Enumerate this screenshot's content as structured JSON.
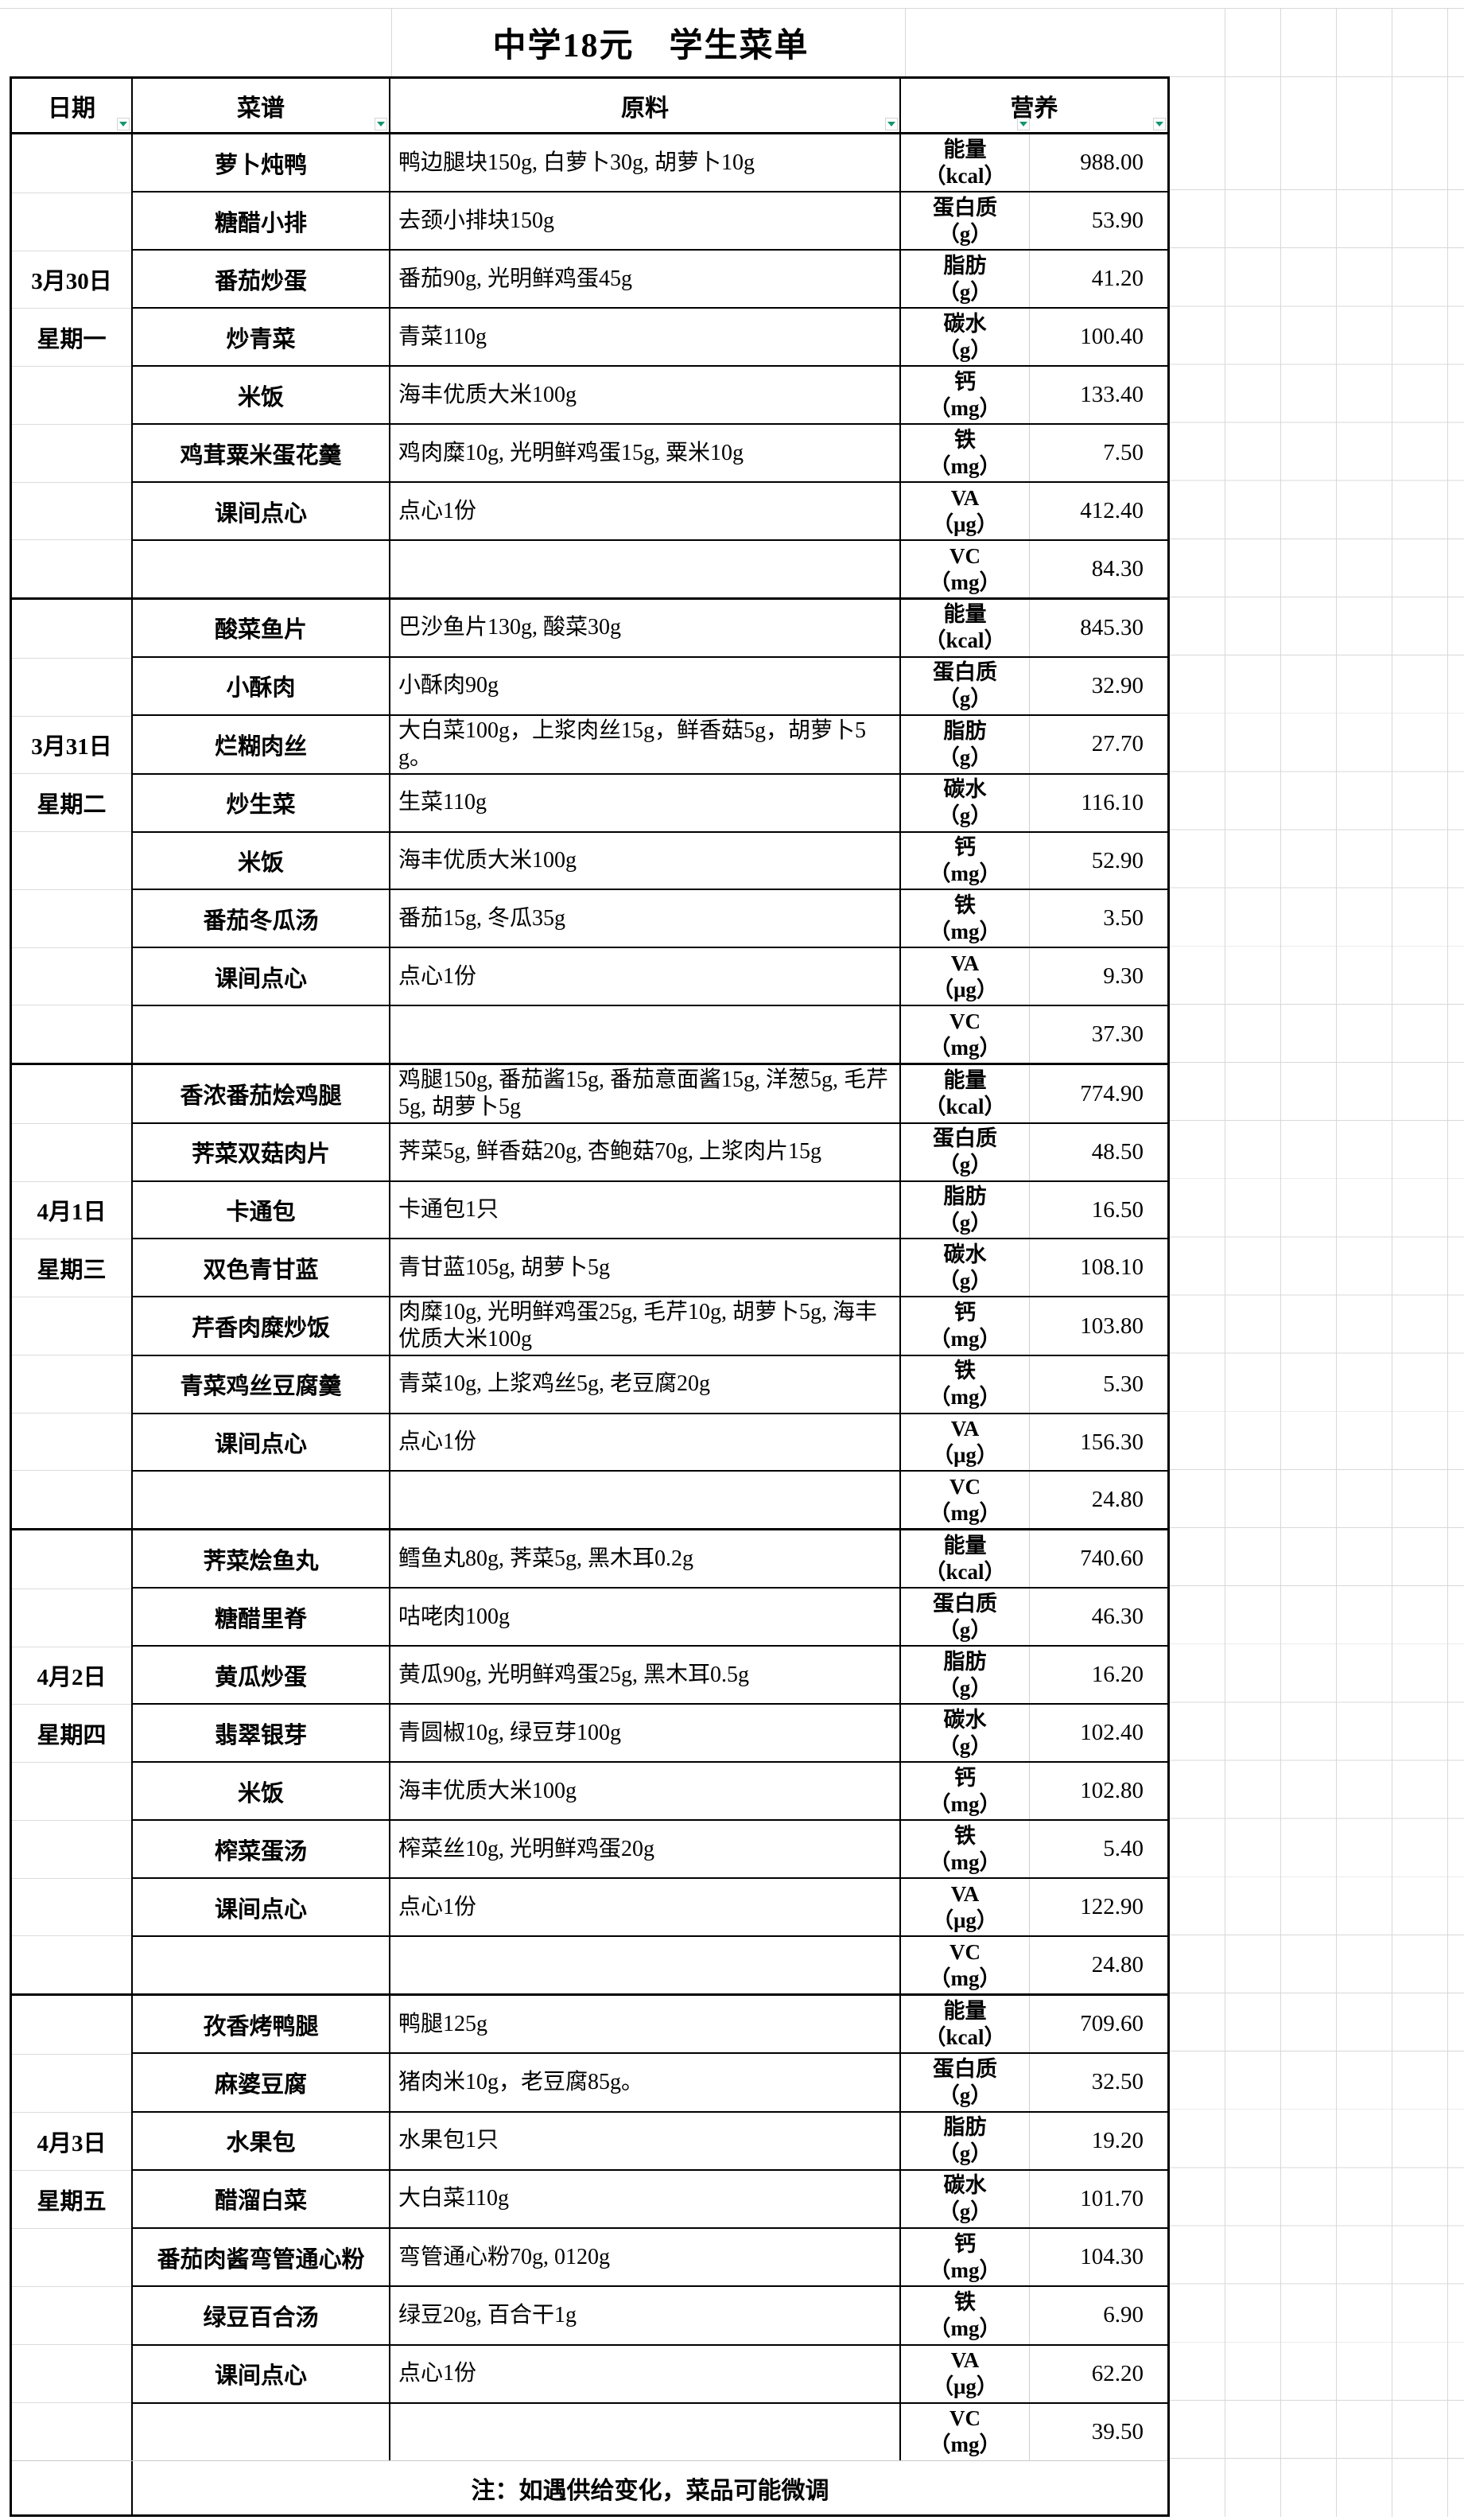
{
  "title": "中学18元　学生菜单",
  "columns": {
    "date": "日期",
    "menu": "菜谱",
    "ingredients": "原料",
    "nutrition": "营养"
  },
  "nutrients": [
    {
      "name": "能量",
      "unit": "（kcal）"
    },
    {
      "name": "蛋白质",
      "unit": "（g）"
    },
    {
      "name": "脂肪",
      "unit": "（g）"
    },
    {
      "name": "碳水",
      "unit": "（g）"
    },
    {
      "name": "钙",
      "unit": "（mg）"
    },
    {
      "name": "铁",
      "unit": "（mg）"
    },
    {
      "name": "VA",
      "unit": "（μg）"
    },
    {
      "name": "VC",
      "unit": "（mg）"
    }
  ],
  "days": [
    {
      "date_line1": "3月30日",
      "date_line2": "星期一",
      "rows": [
        {
          "menu": "萝卜炖鸭",
          "ingredients": "鸭边腿块150g, 白萝卜30g, 胡萝卜10g",
          "value": "988.00"
        },
        {
          "menu": "糖醋小排",
          "ingredients": "去颈小排块150g",
          "value": "53.90"
        },
        {
          "menu": "番茄炒蛋",
          "ingredients": "番茄90g, 光明鲜鸡蛋45g",
          "value": "41.20"
        },
        {
          "menu": "炒青菜",
          "ingredients": "青菜110g",
          "value": "100.40"
        },
        {
          "menu": "米饭",
          "ingredients": "海丰优质大米100g",
          "value": "133.40"
        },
        {
          "menu": "鸡茸粟米蛋花羹",
          "ingredients": "鸡肉糜10g, 光明鲜鸡蛋15g, 粟米10g",
          "value": "7.50"
        },
        {
          "menu": "课间点心",
          "ingredients": "点心1份",
          "value": "412.40"
        },
        {
          "menu": "",
          "ingredients": "",
          "value": "84.30"
        }
      ]
    },
    {
      "date_line1": "3月31日",
      "date_line2": "星期二",
      "rows": [
        {
          "menu": "酸菜鱼片",
          "ingredients": "巴沙鱼片130g, 酸菜30g",
          "value": "845.30"
        },
        {
          "menu": "小酥肉",
          "ingredients": "小酥肉90g",
          "value": "32.90"
        },
        {
          "menu": "烂糊肉丝",
          "ingredients": "大白菜100g，上浆肉丝15g，鲜香菇5g，胡萝卜5g。",
          "value": "27.70"
        },
        {
          "menu": "炒生菜",
          "ingredients": "生菜110g",
          "value": "116.10"
        },
        {
          "menu": "米饭",
          "ingredients": "海丰优质大米100g",
          "value": "52.90"
        },
        {
          "menu": "番茄冬瓜汤",
          "ingredients": "番茄15g, 冬瓜35g",
          "value": "3.50"
        },
        {
          "menu": "课间点心",
          "ingredients": "点心1份",
          "value": "9.30"
        },
        {
          "menu": "",
          "ingredients": "",
          "value": "37.30"
        }
      ]
    },
    {
      "date_line1": "4月1日",
      "date_line2": "星期三",
      "rows": [
        {
          "menu": "香浓番茄烩鸡腿",
          "ingredients": "鸡腿150g, 番茄酱15g, 番茄意面酱15g, 洋葱5g, 毛芹5g, 胡萝卜5g",
          "value": "774.90"
        },
        {
          "menu": "荠菜双菇肉片",
          "ingredients": "荠菜5g, 鲜香菇20g, 杏鲍菇70g, 上浆肉片15g",
          "value": "48.50"
        },
        {
          "menu": "卡通包",
          "ingredients": "卡通包1只",
          "value": "16.50"
        },
        {
          "menu": "双色青甘蓝",
          "ingredients": "青甘蓝105g, 胡萝卜5g",
          "value": "108.10"
        },
        {
          "menu": "芹香肉糜炒饭",
          "ingredients": "肉糜10g, 光明鲜鸡蛋25g, 毛芹10g, 胡萝卜5g, 海丰优质大米100g",
          "value": "103.80"
        },
        {
          "menu": "青菜鸡丝豆腐羹",
          "ingredients": "青菜10g, 上浆鸡丝5g, 老豆腐20g",
          "value": "5.30"
        },
        {
          "menu": "课间点心",
          "ingredients": "点心1份",
          "value": "156.30"
        },
        {
          "menu": "",
          "ingredients": "",
          "value": "24.80"
        }
      ]
    },
    {
      "date_line1": "4月2日",
      "date_line2": "星期四",
      "rows": [
        {
          "menu": "荠菜烩鱼丸",
          "ingredients": "鳕鱼丸80g, 荠菜5g, 黑木耳0.2g",
          "value": "740.60"
        },
        {
          "menu": "糖醋里脊",
          "ingredients": "咕咾肉100g",
          "value": "46.30"
        },
        {
          "menu": "黄瓜炒蛋",
          "ingredients": "黄瓜90g, 光明鲜鸡蛋25g, 黑木耳0.5g",
          "value": "16.20"
        },
        {
          "menu": "翡翠银芽",
          "ingredients": "青圆椒10g, 绿豆芽100g",
          "value": "102.40"
        },
        {
          "menu": "米饭",
          "ingredients": "海丰优质大米100g",
          "value": "102.80"
        },
        {
          "menu": "榨菜蛋汤",
          "ingredients": "榨菜丝10g, 光明鲜鸡蛋20g",
          "value": "5.40"
        },
        {
          "menu": "课间点心",
          "ingredients": "点心1份",
          "value": "122.90"
        },
        {
          "menu": "",
          "ingredients": "",
          "value": "24.80"
        }
      ]
    },
    {
      "date_line1": "4月3日",
      "date_line2": "星期五",
      "rows": [
        {
          "menu": "孜香烤鸭腿",
          "ingredients": "鸭腿125g",
          "value": "709.60"
        },
        {
          "menu": "麻婆豆腐",
          "ingredients": "猪肉米10g，老豆腐85g。",
          "value": "32.50"
        },
        {
          "menu": "水果包",
          "ingredients": "水果包1只",
          "value": "19.20"
        },
        {
          "menu": "醋溜白菜",
          "ingredients": "大白菜110g",
          "value": "101.70"
        },
        {
          "menu": "番茄肉酱弯管通心粉",
          "ingredients": "弯管通心粉70g, 0120g",
          "value": "104.30"
        },
        {
          "menu": "绿豆百合汤",
          "ingredients": "绿豆20g, 百合干1g",
          "value": "6.90"
        },
        {
          "menu": "课间点心",
          "ingredients": "点心1份",
          "value": "62.20"
        },
        {
          "menu": "",
          "ingredients": "",
          "value": "39.50"
        }
      ]
    }
  ],
  "note": "注：如遇供给变化，菜品可能微调",
  "colors": {
    "filter_arrow_green": "#159570",
    "gridline": "#d8d8d8",
    "border": "#000000"
  }
}
